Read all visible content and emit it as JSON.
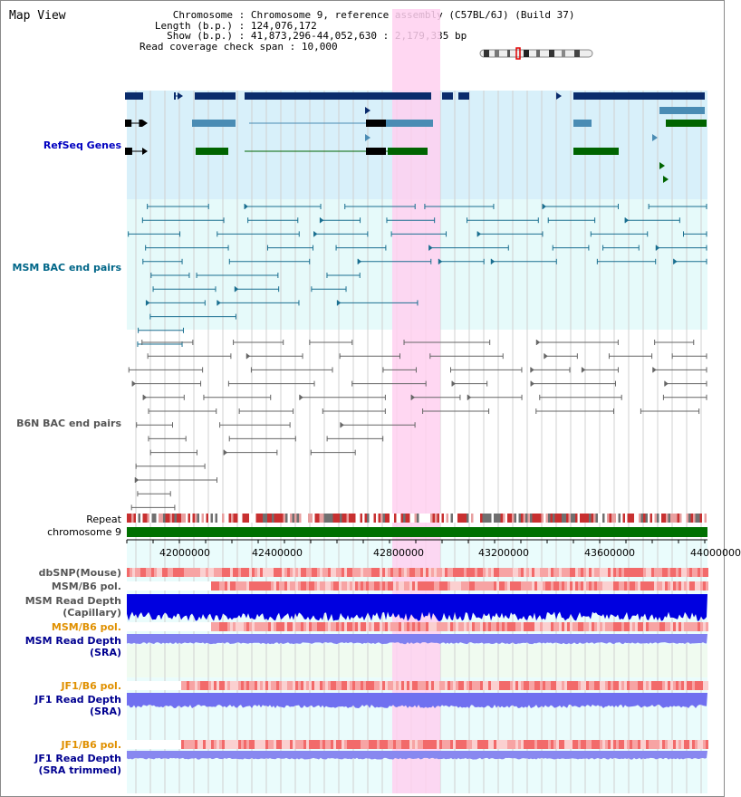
{
  "title": "Map View",
  "info": {
    "chromosome_label": "Chromosome",
    "chromosome_value": "Chromosome 9, reference assembly (C57BL/6J) (Build 37)",
    "length_label": "Length (b.p.)",
    "length_value": "124,076,172",
    "show_label": "Show (b.p.)",
    "show_value": "41,873,296-44,052,630 : 2,179,335 bp",
    "coverage_label": "Read coverage check span",
    "coverage_value": "10,000"
  },
  "tracks": {
    "refseq": "RefSeq Genes",
    "msm_bac": "MSM BAC end pairs",
    "b6n_bac": "B6N BAC end pairs",
    "repeat": "Repeat",
    "chromosome": "chromosome 9",
    "dbsnp": "dbSNP(Mouse)",
    "msm_pol_1": "MSM/B6 pol.",
    "msm_depth_cap_1": "MSM Read Depth",
    "msm_depth_cap_2": "(Capillary)",
    "msm_pol_2": "MSM/B6 pol.",
    "msm_depth_sra_1": "MSM Read Depth",
    "msm_depth_sra_2": "(SRA)",
    "jf1_pol_1": "JF1/B6 pol.",
    "jf1_depth_1": "JF1 Read Depth",
    "jf1_depth_2": "(SRA)",
    "jf1_pol_2": "JF1/B6 pol.",
    "jf1_trim_1": "JF1 Read Depth",
    "jf1_trim_2": "(SRA trimmed)"
  },
  "axis_ticks": [
    "42000000",
    "42400000",
    "42800000",
    "43200000",
    "43600000",
    "44000000"
  ],
  "colors": {
    "refseq_label": "#0000c0",
    "msm_label": "#006688",
    "b6n_label": "#555555",
    "orange_label": "#e09000",
    "blue_label": "#000090",
    "highlight": "#ffd0f0",
    "gene_dark": "#0a2c6c",
    "gene_mid": "#4a8cb4",
    "gene_green": "#006400",
    "chrom_bar": "#007000"
  }
}
